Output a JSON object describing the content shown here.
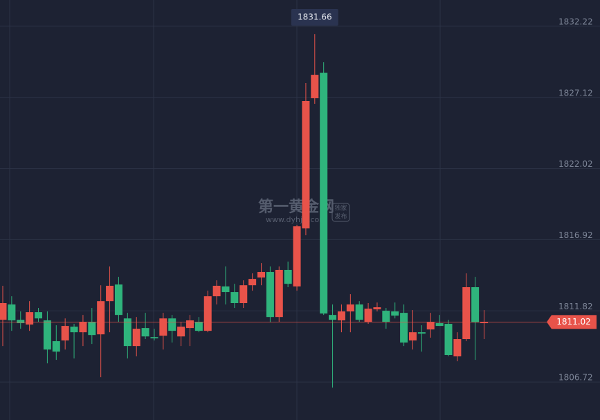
{
  "chart_data": {
    "type": "candlestick",
    "up_color": "#e8534a",
    "down_color": "#2fb47c",
    "grid": true,
    "ylim": [
      1804.0,
      1834.1
    ],
    "yticks": [
      1832.22,
      1827.12,
      1822.02,
      1816.92,
      1811.82,
      1806.72
    ],
    "open": [
      1811.18,
      1812.28,
      1811.18,
      1810.84,
      1811.73,
      1811.14,
      1809.65,
      1809.7,
      1810.69,
      1810.29,
      1811.04,
      1810.14,
      1812.52,
      1813.71,
      1811.28,
      1809.3,
      1810.59,
      1809.94,
      1810.04,
      1811.28,
      1809.99,
      1810.59,
      1811.04,
      1810.39,
      1812.87,
      1813.57,
      1813.17,
      1812.38,
      1813.66,
      1814.21,
      1814.61,
      1811.38,
      1814.76,
      1813.57,
      1817.73,
      1827.06,
      1828.89,
      1811.53,
      1811.14,
      1811.78,
      1812.28,
      1811.04,
      1811.93,
      1811.83,
      1811.78,
      1811.68,
      1809.7,
      1810.29,
      1810.49,
      1810.94,
      1810.89,
      1808.56,
      1809.8,
      1813.52,
      1810.94
    ],
    "high": [
      1813.62,
      1812.87,
      1811.78,
      1812.52,
      1812.03,
      1811.78,
      1810.79,
      1811.28,
      1810.89,
      1811.53,
      1812.03,
      1813.66,
      1815.0,
      1814.26,
      1811.68,
      1811.38,
      1811.68,
      1810.54,
      1811.68,
      1811.53,
      1811.04,
      1811.53,
      1811.38,
      1813.27,
      1814.01,
      1815.0,
      1813.76,
      1814.01,
      1814.51,
      1815.25,
      1815.0,
      1815.0,
      1815.35,
      1817.98,
      1828.15,
      1831.66,
      1829.64,
      1812.28,
      1812.28,
      1813.02,
      1812.52,
      1812.38,
      1812.42,
      1812.03,
      1812.42,
      1812.28,
      1811.88,
      1810.79,
      1811.68,
      1811.53,
      1811.18,
      1810.29,
      1814.51,
      1814.26,
      1811.88
    ],
    "low": [
      1809.3,
      1810.39,
      1810.54,
      1810.39,
      1811.04,
      1808.06,
      1808.31,
      1809.05,
      1808.41,
      1809.3,
      1809.45,
      1807.07,
      1810.29,
      1811.04,
      1808.41,
      1808.56,
      1809.8,
      1809.7,
      1809.05,
      1809.55,
      1809.3,
      1809.3,
      1810.29,
      1810.29,
      1812.28,
      1812.28,
      1812.03,
      1812.03,
      1813.27,
      1813.66,
      1810.99,
      1811.04,
      1813.52,
      1813.27,
      1817.24,
      1826.66,
      1811.53,
      1806.32,
      1810.29,
      1810.29,
      1811.04,
      1810.89,
      1811.78,
      1810.54,
      1811.28,
      1809.3,
      1809.05,
      1808.9,
      1809.9,
      1810.74,
      1808.56,
      1808.21,
      1809.65,
      1808.31,
      1809.8
    ],
    "close": [
      1812.38,
      1811.14,
      1810.94,
      1811.73,
      1811.28,
      1809.05,
      1808.9,
      1810.74,
      1810.29,
      1811.04,
      1810.09,
      1812.52,
      1813.62,
      1811.53,
      1809.3,
      1810.54,
      1809.99,
      1809.85,
      1811.28,
      1810.39,
      1810.69,
      1811.14,
      1810.39,
      1812.87,
      1813.62,
      1813.17,
      1812.38,
      1813.66,
      1814.11,
      1814.61,
      1811.38,
      1814.76,
      1813.76,
      1817.88,
      1826.86,
      1828.74,
      1811.63,
      1811.18,
      1811.78,
      1812.28,
      1811.18,
      1811.98,
      1812.08,
      1811.04,
      1811.48,
      1809.55,
      1810.29,
      1810.19,
      1811.04,
      1810.74,
      1808.66,
      1809.8,
      1813.52,
      1810.99,
      1811.02
    ],
    "watermark": {
      "name": "第一黄金网",
      "url": "www.dyhjw.com",
      "badge": [
        "独家",
        "发布"
      ]
    }
  }
}
